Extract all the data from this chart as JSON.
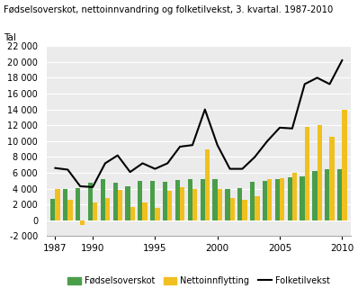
{
  "years": [
    1987,
    1988,
    1989,
    1990,
    1991,
    1992,
    1993,
    1994,
    1995,
    1996,
    1997,
    1998,
    1999,
    2000,
    2001,
    2002,
    2003,
    2004,
    2005,
    2006,
    2007,
    2008,
    2009,
    2010
  ],
  "fodselsoverskot": [
    2700,
    3900,
    4100,
    4700,
    5200,
    4700,
    4300,
    5000,
    5000,
    4900,
    5100,
    5200,
    5200,
    5200,
    4000,
    4100,
    4900,
    5000,
    5200,
    5400,
    5500,
    6200,
    6400,
    6500
  ],
  "nettoinnvandring": [
    4000,
    2600,
    -600,
    2200,
    2800,
    3800,
    1700,
    2200,
    1600,
    3700,
    4200,
    3900,
    8900,
    3900,
    2800,
    2600,
    3000,
    5200,
    5300,
    6000,
    11800,
    12000,
    10500,
    13900
  ],
  "folketilvekst": [
    6600,
    6400,
    4300,
    4200,
    7200,
    8200,
    6100,
    7200,
    6500,
    7200,
    9300,
    9500,
    14000,
    9500,
    6500,
    6500,
    8000,
    10000,
    11700,
    11600,
    17200,
    18000,
    17200,
    20200
  ],
  "title": "Fødselsoverskot, nettoinnvandring og folketilvekst, 3. kvartal. 1987-2010",
  "ylabel": "Tal",
  "ylim": [
    -2000,
    22000
  ],
  "yticks": [
    -2000,
    0,
    2000,
    4000,
    6000,
    8000,
    10000,
    12000,
    14000,
    16000,
    18000,
    20000,
    22000
  ],
  "xtick_years": [
    1987,
    1990,
    1995,
    2000,
    2005,
    2010
  ],
  "color_fodsels": "#4a9e4a",
  "color_netto": "#f0c020",
  "color_line": "#000000",
  "bar_width": 0.38,
  "legend_fodsels": "Fødselsoverskot",
  "legend_netto": "Nettoinnflytting",
  "legend_line": "Folketilvekst",
  "plot_bg_color": "#ebebeb",
  "fig_bg_color": "#ffffff",
  "grid_color": "#ffffff"
}
